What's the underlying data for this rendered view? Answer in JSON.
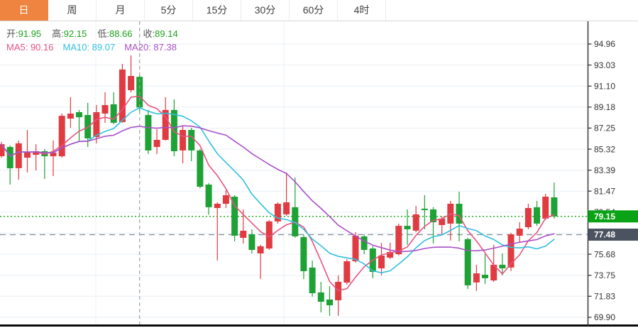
{
  "tab_bar": {
    "tabs": [
      {
        "label": "日",
        "active": true
      },
      {
        "label": "周",
        "active": false
      },
      {
        "label": "月",
        "active": false
      },
      {
        "label": "5分",
        "active": false
      },
      {
        "label": "15分",
        "active": false
      },
      {
        "label": "30分",
        "active": false
      },
      {
        "label": "60分",
        "active": false
      },
      {
        "label": "4时",
        "active": false
      }
    ]
  },
  "info_panel": {
    "ohlc": [
      {
        "label": "开",
        "value": "91.95"
      },
      {
        "label": "高",
        "value": "92.15"
      },
      {
        "label": "低",
        "value": "88.66"
      },
      {
        "label": "收",
        "value": "89.14"
      }
    ],
    "ma": [
      {
        "label": "MA5",
        "value": "90.16"
      },
      {
        "label": "MA10",
        "value": "89.07"
      },
      {
        "label": "MA20",
        "value": "87.38"
      }
    ]
  },
  "colors": {
    "accent_tab": "#ef8440",
    "up_candle": "#e03b41",
    "down_candle": "#1ea135",
    "ohlc_value_green": "#19a319",
    "label_gray": "#555555",
    "ma5": "#e8537f",
    "ma10": "#2fc1dc",
    "ma20": "#aa4fc8",
    "grid": "#e9eff5",
    "axis_line": "#2b2b2b",
    "axis_label": "#333333",
    "crosshair": "#9aa0a6",
    "last_price_line": "#2eb82e",
    "last_price_badge": "#0aa315",
    "reference_line": "#7e8c99",
    "reference_badge": "#4b5260",
    "bottom_border": "#0a0a0a"
  },
  "chart_data": {
    "type": "candlestick",
    "title": "",
    "legend_position": "top-left",
    "y_ticks": [
      94.96,
      93.03,
      91.1,
      89.18,
      87.25,
      85.32,
      83.39,
      81.47,
      79.54,
      77.61,
      75.68,
      73.75,
      71.83,
      69.9
    ],
    "ylim": [
      69.24,
      97.04
    ],
    "ma_periods": [
      5,
      10,
      20
    ],
    "selected_index": 16,
    "selected_ohlc": {
      "open": 91.95,
      "high": 92.15,
      "low": 88.66,
      "close": 89.14
    },
    "ma_at_selection": {
      "ma5": 90.16,
      "ma10": 89.07,
      "ma20": 87.38
    },
    "last_price": 79.15,
    "reference_lines": [
      {
        "price": 79.15,
        "label": "79.15",
        "style": "dotted",
        "role": "last-price"
      },
      {
        "price": 77.48,
        "label": "77.48",
        "style": "dashed",
        "role": "reference"
      }
    ],
    "grid": {
      "vlines_x": [
        135,
        400
      ],
      "horizontal": "on"
    },
    "candles": [
      [
        84.67,
        85.98,
        84.54,
        85.78
      ],
      [
        85.52,
        85.65,
        82.07,
        83.57
      ],
      [
        83.57,
        86.11,
        82.52,
        85.85
      ],
      [
        84.54,
        87.08,
        83.18,
        85.0
      ],
      [
        84.8,
        85.78,
        83.37,
        85.13
      ],
      [
        85.13,
        85.33,
        82.59,
        84.67
      ],
      [
        84.67,
        86.11,
        82.85,
        85.0
      ],
      [
        84.67,
        88.58,
        84.54,
        88.38
      ],
      [
        88.12,
        90.08,
        87.28,
        88.58
      ],
      [
        88.71,
        88.91,
        85.98,
        88.25
      ],
      [
        88.45,
        89.56,
        85.52,
        86.3
      ],
      [
        86.43,
        89.36,
        85.85,
        88.71
      ],
      [
        88.58,
        90.53,
        87.74,
        89.36
      ],
      [
        89.43,
        90.53,
        87.6,
        87.74
      ],
      [
        87.8,
        93.14,
        87.74,
        92.62
      ],
      [
        90.73,
        93.92,
        90.53,
        92.03
      ],
      [
        91.95,
        92.15,
        88.66,
        89.14
      ],
      [
        88.45,
        88.91,
        84.87,
        85.2
      ],
      [
        85.52,
        87.15,
        84.87,
        86.17
      ],
      [
        86.17,
        90.08,
        86.11,
        88.91
      ],
      [
        88.91,
        89.88,
        84.67,
        85.13
      ],
      [
        85.2,
        87.47,
        84.02,
        87.08
      ],
      [
        87.08,
        87.28,
        84.22,
        85.2
      ],
      [
        85.2,
        85.33,
        81.74,
        81.87
      ],
      [
        82.07,
        82.2,
        79.3,
        79.99
      ],
      [
        79.92,
        80.44,
        75.11,
        80.31
      ],
      [
        80.31,
        81.55,
        79.92,
        81.09
      ],
      [
        80.96,
        81.09,
        76.86,
        77.38
      ],
      [
        77.19,
        79.79,
        76.67,
        77.84
      ],
      [
        77.51,
        77.97,
        75.76,
        76.08
      ],
      [
        75.76,
        76.54,
        73.41,
        76.41
      ],
      [
        76.21,
        78.82,
        76.08,
        78.69
      ],
      [
        78.69,
        80.44,
        78.49,
        80.31
      ],
      [
        79.34,
        83.18,
        79.21,
        80.44
      ],
      [
        79.99,
        82.72,
        77.19,
        77.32
      ],
      [
        77.26,
        77.45,
        73.41,
        74.13
      ],
      [
        74.46,
        75.11,
        71.79,
        72.11
      ],
      [
        72.18,
        73.15,
        70.35,
        71.33
      ],
      [
        71.53,
        72.76,
        70.03,
        71.0
      ],
      [
        71.46,
        73.74,
        70.03,
        73.15
      ],
      [
        73.09,
        75.24,
        72.9,
        75.04
      ],
      [
        75.04,
        77.71,
        74.91,
        77.38
      ],
      [
        77.32,
        77.51,
        75.69,
        76.08
      ],
      [
        76.21,
        76.41,
        73.48,
        74.06
      ],
      [
        74.39,
        76.73,
        73.74,
        75.56
      ],
      [
        75.37,
        76.73,
        75.24,
        75.89
      ],
      [
        75.69,
        78.49,
        75.56,
        78.29
      ],
      [
        78.29,
        79.79,
        76.54,
        77.97
      ],
      [
        77.84,
        80.12,
        77.71,
        79.34
      ],
      [
        79.86,
        81.09,
        77.97,
        79.73
      ],
      [
        79.79,
        79.99,
        76.67,
        78.62
      ],
      [
        78.36,
        79.15,
        77.45,
        78.95
      ],
      [
        78.49,
        80.57,
        76.93,
        80.31
      ],
      [
        80.31,
        81.42,
        76.86,
        78.49
      ],
      [
        77.06,
        77.19,
        72.5,
        72.83
      ],
      [
        73.09,
        74.72,
        72.31,
        73.93
      ],
      [
        73.8,
        75.69,
        72.96,
        73.48
      ],
      [
        73.28,
        76.54,
        73.15,
        74.72
      ],
      [
        74.72,
        75.76,
        73.74,
        74.39
      ],
      [
        74.46,
        77.64,
        74.13,
        77.51
      ],
      [
        77.38,
        78.62,
        76.73,
        78.03
      ],
      [
        78.16,
        80.31,
        77.97,
        79.92
      ],
      [
        79.99,
        80.57,
        78.29,
        78.49
      ],
      [
        78.95,
        81.22,
        78.82,
        80.96
      ],
      [
        80.9,
        82.26,
        78.95,
        79.15
      ]
    ]
  }
}
